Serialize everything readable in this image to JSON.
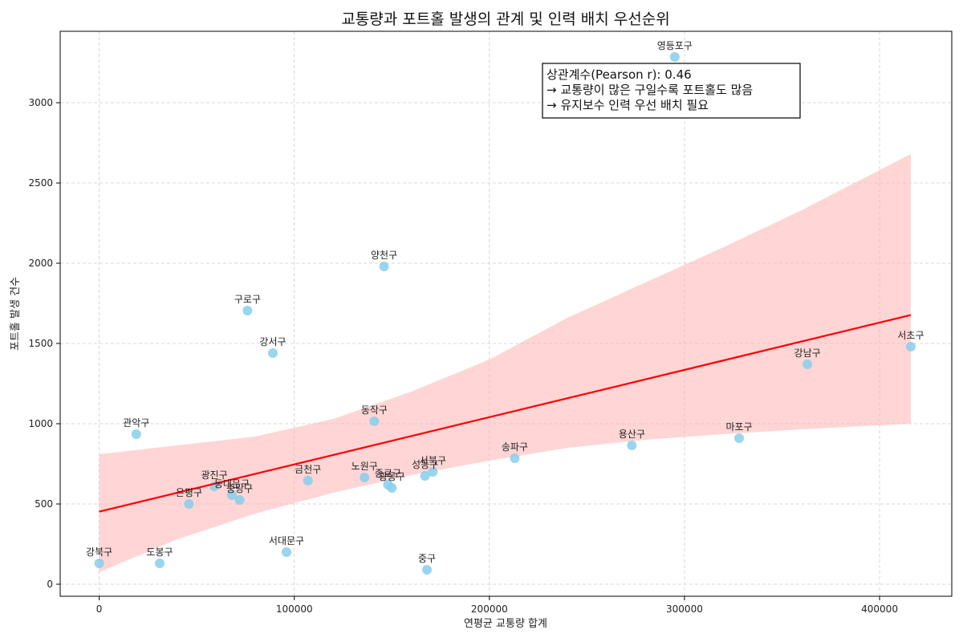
{
  "chart_data": {
    "type": "scatter",
    "title": "교통량과 포트홀 발생의 관계 및 인력 배치 우선순위",
    "xlabel": "연평균 교통량 합계",
    "ylabel": "포트홀 발생 건수",
    "xlim": [
      -20000,
      437000
    ],
    "ylim": [
      -75,
      3445
    ],
    "xticks": [
      0,
      100000,
      200000,
      300000,
      400000
    ],
    "yticks": [
      0,
      500,
      1000,
      1500,
      2000,
      2500,
      3000
    ],
    "grid": true,
    "point_color": "#87ceeb",
    "fit_color": "#ff0000",
    "band_color": "#ffb3b3",
    "points": [
      {
        "label": "영등포구",
        "x": 295000,
        "y": 3285
      },
      {
        "label": "양천구",
        "x": 146000,
        "y": 1980
      },
      {
        "label": "구로구",
        "x": 76000,
        "y": 1705
      },
      {
        "label": "강서구",
        "x": 89000,
        "y": 1440
      },
      {
        "label": "서초구",
        "x": 416000,
        "y": 1480
      },
      {
        "label": "강남구",
        "x": 363000,
        "y": 1370
      },
      {
        "label": "동작구",
        "x": 141000,
        "y": 1015
      },
      {
        "label": "관악구",
        "x": 19000,
        "y": 935
      },
      {
        "label": "마포구",
        "x": 328000,
        "y": 910
      },
      {
        "label": "용산구",
        "x": 273000,
        "y": 865
      },
      {
        "label": "송파구",
        "x": 213000,
        "y": 785
      },
      {
        "label": "서북구",
        "x": 171000,
        "y": 700
      },
      {
        "label": "성동구",
        "x": 167000,
        "y": 675
      },
      {
        "label": "노원구",
        "x": 136000,
        "y": 665
      },
      {
        "label": "종로구",
        "x": 148000,
        "y": 620
      },
      {
        "label": "광동구",
        "x": 150000,
        "y": 600
      },
      {
        "label": "금천구",
        "x": 107000,
        "y": 645
      },
      {
        "label": "광진구",
        "x": 59000,
        "y": 610
      },
      {
        "label": "동대문구",
        "x": 68000,
        "y": 555
      },
      {
        "label": "중랑구",
        "x": 72000,
        "y": 525
      },
      {
        "label": "은평구",
        "x": 46000,
        "y": 500
      },
      {
        "label": "서대문구",
        "x": 96000,
        "y": 200
      },
      {
        "label": "강북구",
        "x": 0,
        "y": 130
      },
      {
        "label": "도봉구",
        "x": 31000,
        "y": 130
      },
      {
        "label": "중구",
        "x": 168000,
        "y": 90
      }
    ],
    "fit_line": {
      "x": [
        0,
        416000
      ],
      "y": [
        452,
        1677
      ]
    },
    "confidence_band": {
      "x": [
        0,
        40000,
        80000,
        120000,
        160000,
        200000,
        240000,
        280000,
        320000,
        360000,
        416000
      ],
      "upper": [
        810,
        865,
        920,
        1030,
        1200,
        1400,
        1660,
        1880,
        2100,
        2330,
        2680
      ],
      "lower": [
        75,
        280,
        440,
        570,
        680,
        770,
        850,
        900,
        935,
        965,
        1000
      ]
    },
    "annotation": {
      "lines": [
        "상관계수(Pearson r): 0.46",
        "→ 교통량이 많은 구일수록 포트홀도 많음",
        "→ 유지보수 인력 우선 배치 필요"
      ]
    }
  }
}
